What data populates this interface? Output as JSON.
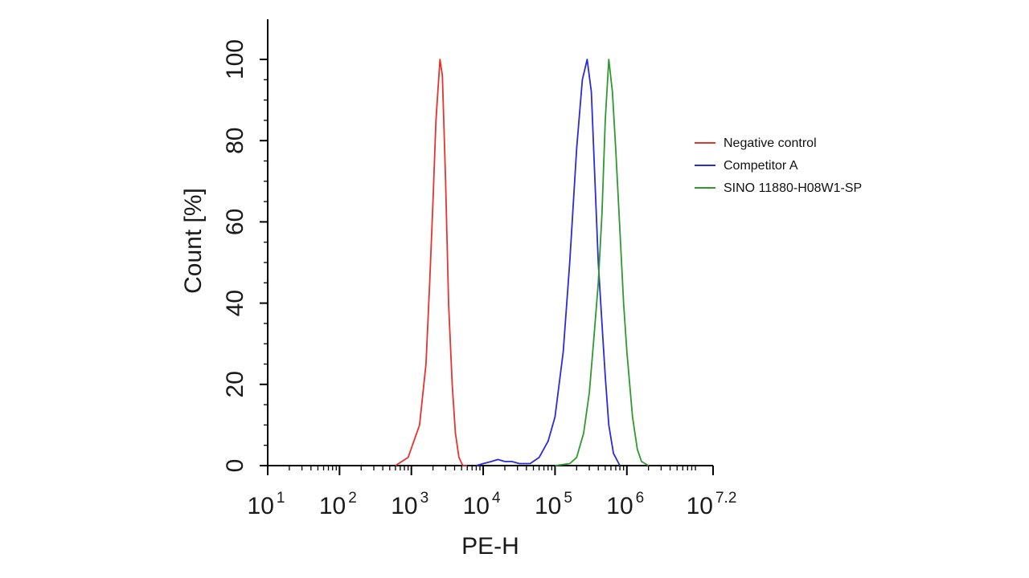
{
  "chart_data": {
    "type": "line",
    "title": "",
    "xlabel": "PE-H",
    "ylabel": "Count [%]",
    "x_scale": "log10",
    "xlim": [
      10,
      15848932
    ],
    "ylim": [
      0,
      100
    ],
    "grid": false,
    "legend_position": "right",
    "x_ticks": [
      {
        "value": 10,
        "base": "10",
        "exp": "1"
      },
      {
        "value": 100,
        "base": "10",
        "exp": "2"
      },
      {
        "value": 1000,
        "base": "10",
        "exp": "3"
      },
      {
        "value": 10000,
        "base": "10",
        "exp": "4"
      },
      {
        "value": 100000,
        "base": "10",
        "exp": "5"
      },
      {
        "value": 1000000,
        "base": "10",
        "exp": "6"
      },
      {
        "value": 15848932,
        "base": "10",
        "exp": "7.2"
      }
    ],
    "y_ticks": [
      {
        "value": 0,
        "label": "0"
      },
      {
        "value": 20,
        "label": "20"
      },
      {
        "value": 40,
        "label": "40"
      },
      {
        "value": 60,
        "label": "60"
      },
      {
        "value": 80,
        "label": "80"
      },
      {
        "value": 100,
        "label": "100"
      }
    ],
    "series": [
      {
        "name": "Negative control",
        "color": "#e8322d",
        "x": [
          600,
          900,
          1300,
          1600,
          1800,
          2000,
          2200,
          2500,
          2700,
          3000,
          3300,
          3700,
          4100,
          4600,
          5200,
          6000
        ],
        "y": [
          0,
          2,
          10,
          25,
          45,
          65,
          85,
          100,
          96,
          70,
          40,
          20,
          8,
          2,
          0,
          0
        ]
      },
      {
        "name": "Competitor A",
        "color": "#2b2bd8",
        "x": [
          8000,
          10000,
          13000,
          16000,
          20000,
          25000,
          32000,
          45000,
          60000,
          80000,
          100000,
          130000,
          160000,
          200000,
          240000,
          280000,
          320000,
          360000,
          400000,
          450000,
          500000,
          560000,
          650000,
          800000
        ],
        "y": [
          0,
          0.5,
          1,
          1.5,
          1,
          1,
          0.5,
          0.5,
          2,
          6,
          12,
          28,
          50,
          78,
          95,
          100,
          92,
          70,
          50,
          35,
          22,
          10,
          3,
          0
        ]
      },
      {
        "name": "SINO 11880-H08W1-SP",
        "color": "#2e9a2e",
        "x": [
          100000,
          160000,
          200000,
          250000,
          300000,
          350000,
          400000,
          450000,
          500000,
          560000,
          630000,
          700000,
          800000,
          900000,
          1000000,
          1200000,
          1400000,
          1600000,
          2000000
        ],
        "y": [
          0,
          0.5,
          2,
          8,
          18,
          32,
          45,
          62,
          85,
          100,
          92,
          78,
          58,
          40,
          28,
          12,
          4,
          1,
          0
        ]
      }
    ]
  }
}
